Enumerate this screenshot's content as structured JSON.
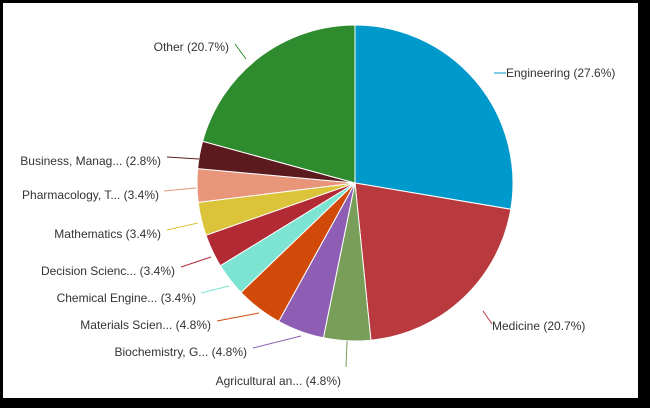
{
  "chart_data": {
    "type": "pie",
    "title": "",
    "slices": [
      {
        "label": "Engineering (27.6%)",
        "value": 27.6,
        "color": "#0099CC"
      },
      {
        "label": "Medicine (20.7%)",
        "value": 20.7,
        "color": "#B83A3F"
      },
      {
        "label": "Agricultural an... (4.8%)",
        "value": 4.8,
        "color": "#799E5A"
      },
      {
        "label": "Biochemistry, G... (4.8%)",
        "value": 4.8,
        "color": "#8E5DB4"
      },
      {
        "label": "Materials Scien... (4.8%)",
        "value": 4.8,
        "color": "#D24A0A"
      },
      {
        "label": "Chemical Engine... (3.4%)",
        "value": 3.4,
        "color": "#7DE3D3"
      },
      {
        "label": "Decision Scienc... (3.4%)",
        "value": 3.4,
        "color": "#B22A34"
      },
      {
        "label": "Mathematics (3.4%)",
        "value": 3.4,
        "color": "#DCC43A"
      },
      {
        "label": "Pharmacology, T... (3.4%)",
        "value": 3.4,
        "color": "#E8957A"
      },
      {
        "label": "Business, Manag... (2.8%)",
        "value": 2.8,
        "color": "#5A1A1E"
      },
      {
        "label": "Other (20.7%)",
        "value": 20.7,
        "color": "#2E8B2E"
      }
    ]
  }
}
